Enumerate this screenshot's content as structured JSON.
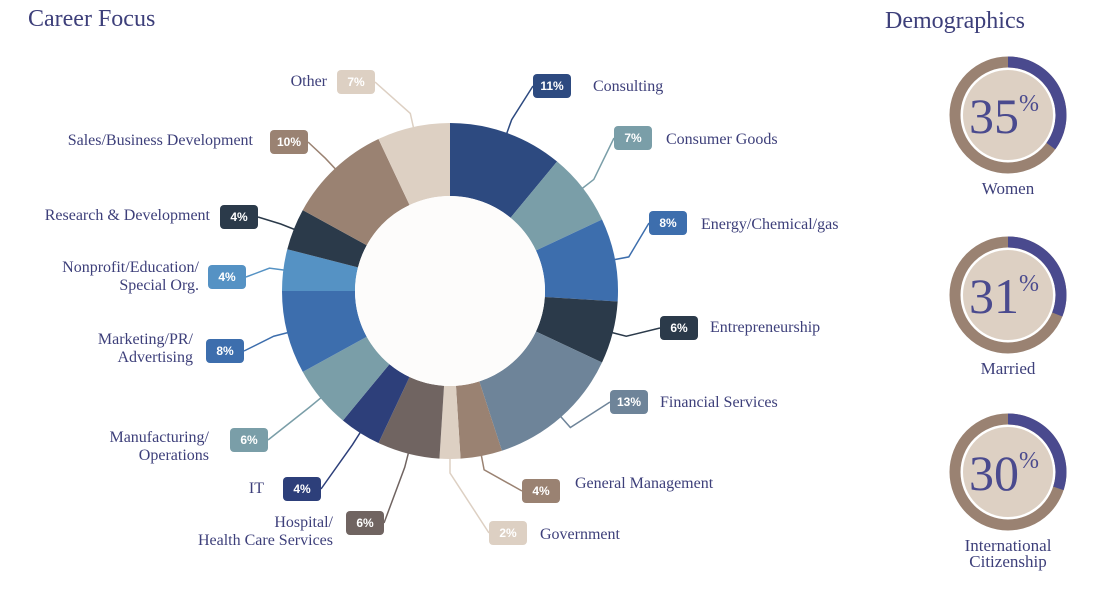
{
  "chart_data": [
    {
      "type": "donut",
      "title": "Career Focus",
      "categories": [
        "Consulting",
        "Consumer Goods",
        "Energy/Chemical/gas",
        "Entrepreneurship",
        "Financial Services",
        "General Management",
        "Government",
        "Hospital/\nHealth Care Services",
        "IT",
        "Manufacturing/\nOperations",
        "Marketing/PR/\nAdvertising",
        "Nonprofit/Education/\nSpecial Org.",
        "Research & Development",
        "Sales/Business Development",
        "Other"
      ],
      "values": [
        11,
        7,
        8,
        6,
        13,
        4,
        2,
        6,
        4,
        6,
        8,
        4,
        4,
        10,
        7
      ],
      "value_labels": [
        "11%",
        "7%",
        "8%",
        "6%",
        "13%",
        "4%",
        "2%",
        "6%",
        "4%",
        "6%",
        "8%",
        "4%",
        "4%",
        "10%",
        "7%"
      ],
      "colors": [
        "#2d4a80",
        "#7a9ea8",
        "#3d6ead",
        "#2b3a4a",
        "#6e8499",
        "#9a8272",
        "#ddd0c3",
        "#706461",
        "#2d3f7a",
        "#7a9ea8",
        "#3d6ead",
        "#5592c4",
        "#2b3a4a",
        "#9a8272",
        "#ddd0c3"
      ]
    },
    {
      "type": "gauge",
      "title": "Demographics",
      "categories": [
        "Women",
        "Married",
        "International\nCitizenship"
      ],
      "values": [
        35,
        31,
        30
      ],
      "unit": "%",
      "ylim": [
        0,
        100
      ],
      "color": "#4a4a8e",
      "track_color": "#9a8272"
    }
  ]
}
